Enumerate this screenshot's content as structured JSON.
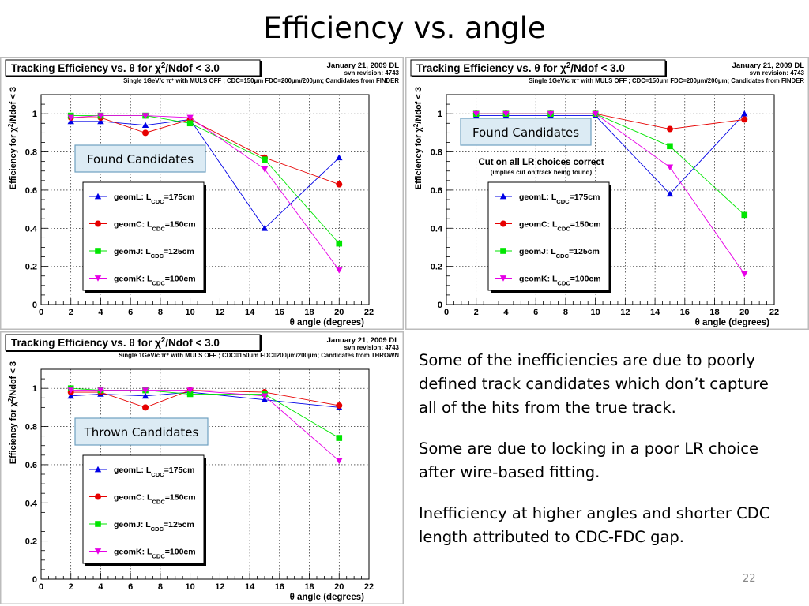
{
  "slide": {
    "title": "Efficiency vs. angle",
    "page_number": "22",
    "paragraphs": [
      "Some of the inefficiencies are due to poorly defined track candidates which don’t capture all of the hits from the true track.",
      "Some are due to locking in a poor LR choice after wire-based fitting.",
      "Inefficiency at higher angles and shorter CDC length attributed to CDC-FDC gap."
    ]
  },
  "colors": {
    "geomL": "#0000e6",
    "geomC": "#e60000",
    "geomJ": "#00e600",
    "geomK": "#e600e6",
    "frame": "#bcbcbc",
    "annotation_fill": "#dcebf4",
    "annotation_border": "#6fa0c0"
  },
  "chart_data": [
    {
      "type": "line",
      "title": "Tracking Efficiency vs. θ for χ²/Ndof < 3.0",
      "title_prefix": "Tracking Efficiency vs. θ for χ",
      "title_sup": "2",
      "title_suffix": "/Ndof < 3.0",
      "date": "January 21, 2009 DL",
      "revision": "svn revision: 4743",
      "subtitle": "Single 1GeV/c π⁺ with MULS OFF ; CDC=150μm FDC=200μm/200μm;  Candidates from FINDER",
      "xlabel": "θ angle (degrees)",
      "ylabel_prefix": "Efficiency for χ",
      "ylabel_sup": "2",
      "ylabel_suffix": "/Ndof < 3",
      "xlim": [
        0,
        22
      ],
      "ylim": [
        0,
        1.1
      ],
      "xticks": [
        "0",
        "2",
        "4",
        "6",
        "8",
        "10",
        "12",
        "14",
        "16",
        "18",
        "20",
        "22"
      ],
      "yticks": [
        "0",
        "0.2",
        "0.4",
        "0.6",
        "0.8",
        "1"
      ],
      "grid": true,
      "annotation": "Found Candidates",
      "note": "",
      "note_sub": "",
      "legend": [
        {
          "name": "geomL",
          "prefix": "geomL: L",
          "sub": "CDC",
          "suffix": "=175cm",
          "marker": "triangle-up",
          "color_key": "geomL"
        },
        {
          "name": "geomC",
          "prefix": "geomC: L",
          "sub": "CDC",
          "suffix": "=150cm",
          "marker": "circle",
          "color_key": "geomC"
        },
        {
          "name": "geomJ",
          "prefix": "geomJ: L",
          "sub": "CDC",
          "suffix": "=125cm",
          "marker": "square",
          "color_key": "geomJ"
        },
        {
          "name": "geomK",
          "prefix": "geomK: L",
          "sub": "CDC",
          "suffix": "=100cm",
          "marker": "triangle-down",
          "color_key": "geomK"
        }
      ],
      "x": [
        2,
        4,
        7,
        10,
        15,
        20
      ],
      "series": [
        {
          "name": "geomL",
          "values": [
            0.96,
            0.96,
            0.94,
            0.97,
            0.4,
            0.77
          ]
        },
        {
          "name": "geomC",
          "values": [
            0.98,
            0.98,
            0.9,
            0.97,
            0.77,
            0.63
          ]
        },
        {
          "name": "geomJ",
          "values": [
            0.99,
            0.99,
            0.99,
            0.95,
            0.76,
            0.32
          ]
        },
        {
          "name": "geomK",
          "values": [
            0.98,
            0.99,
            0.99,
            0.98,
            0.71,
            0.18
          ]
        }
      ]
    },
    {
      "type": "line",
      "title": "Tracking Efficiency vs. θ for χ²/Ndof < 3.0",
      "title_prefix": "Tracking Efficiency vs. θ for χ",
      "title_sup": "2",
      "title_suffix": "/Ndof < 3.0",
      "date": "January 21, 2009 DL",
      "revision": "svn revision: 4743",
      "subtitle": "Single 1GeV/c π⁺ with MULS OFF ; CDC=150μm FDC=200μm/200μm;  Candidates from FINDER",
      "xlabel": "θ angle (degrees)",
      "ylabel_prefix": "Efficiency for χ",
      "ylabel_sup": "2",
      "ylabel_suffix": "/Ndof < 3",
      "xlim": [
        0,
        22
      ],
      "ylim": [
        0,
        1.1
      ],
      "xticks": [
        "0",
        "2",
        "4",
        "6",
        "8",
        "10",
        "12",
        "14",
        "16",
        "18",
        "20",
        "22"
      ],
      "yticks": [
        "0",
        "0.2",
        "0.4",
        "0.6",
        "0.8",
        "1"
      ],
      "grid": true,
      "annotation": "Found Candidates",
      "note": "Cut on all LR choices correct",
      "note_sub": "(implies cut on track being found)",
      "legend": [
        {
          "name": "geomL",
          "prefix": "geomL: L",
          "sub": "CDC",
          "suffix": "=175cm",
          "marker": "triangle-up",
          "color_key": "geomL"
        },
        {
          "name": "geomC",
          "prefix": "geomC: L",
          "sub": "CDC",
          "suffix": "=150cm",
          "marker": "circle",
          "color_key": "geomC"
        },
        {
          "name": "geomJ",
          "prefix": "geomJ: L",
          "sub": "CDC",
          "suffix": "=125cm",
          "marker": "square",
          "color_key": "geomJ"
        },
        {
          "name": "geomK",
          "prefix": "geomK: L",
          "sub": "CDC",
          "suffix": "=100cm",
          "marker": "triangle-down",
          "color_key": "geomK"
        }
      ],
      "x": [
        2,
        4,
        7,
        10,
        15,
        20
      ],
      "series": [
        {
          "name": "geomL",
          "values": [
            0.99,
            0.99,
            0.99,
            0.99,
            0.58,
            1.0
          ]
        },
        {
          "name": "geomC",
          "values": [
            1.0,
            1.0,
            1.0,
            1.0,
            0.92,
            0.97
          ]
        },
        {
          "name": "geomJ",
          "values": [
            1.0,
            1.0,
            1.0,
            1.0,
            0.83,
            0.47
          ]
        },
        {
          "name": "geomK",
          "values": [
            1.0,
            1.0,
            1.0,
            1.0,
            0.72,
            0.16
          ]
        }
      ]
    },
    {
      "type": "line",
      "title": "Tracking Efficiency vs. θ for χ²/Ndof < 3.0",
      "title_prefix": "Tracking Efficiency vs. θ for χ",
      "title_sup": "2",
      "title_suffix": "/Ndof < 3.0",
      "date": "January 21, 2009 DL",
      "revision": "svn revision: 4743",
      "subtitle": "Single 1GeV/c π⁺ with MULS OFF ; CDC=150μm FDC=200μm/200μm;  Candidates from THROWN",
      "xlabel": "θ angle (degrees)",
      "ylabel_prefix": "Efficiency for χ",
      "ylabel_sup": "2",
      "ylabel_suffix": "/Ndof < 3",
      "xlim": [
        0,
        22
      ],
      "ylim": [
        0,
        1.1
      ],
      "xticks": [
        "0",
        "2",
        "4",
        "6",
        "8",
        "10",
        "12",
        "14",
        "16",
        "18",
        "20",
        "22"
      ],
      "yticks": [
        "0",
        "0.2",
        "0.4",
        "0.6",
        "0.8",
        "1"
      ],
      "grid": true,
      "annotation": "Thrown Candidates",
      "note": "",
      "note_sub": "",
      "legend": [
        {
          "name": "geomL",
          "prefix": "geomL: L",
          "sub": "CDC",
          "suffix": "=175cm",
          "marker": "triangle-up",
          "color_key": "geomL"
        },
        {
          "name": "geomC",
          "prefix": "geomC: L",
          "sub": "CDC",
          "suffix": "=150cm",
          "marker": "circle",
          "color_key": "geomC"
        },
        {
          "name": "geomJ",
          "prefix": "geomJ: L",
          "sub": "CDC",
          "suffix": "=125cm",
          "marker": "square",
          "color_key": "geomJ"
        },
        {
          "name": "geomK",
          "prefix": "geomK: L",
          "sub": "CDC",
          "suffix": "=100cm",
          "marker": "triangle-down",
          "color_key": "geomK"
        }
      ],
      "x": [
        2,
        4,
        7,
        10,
        15,
        20
      ],
      "series": [
        {
          "name": "geomL",
          "values": [
            0.96,
            0.97,
            0.96,
            0.98,
            0.94,
            0.9
          ]
        },
        {
          "name": "geomC",
          "values": [
            0.98,
            0.98,
            0.9,
            0.99,
            0.98,
            0.91
          ]
        },
        {
          "name": "geomJ",
          "values": [
            1.0,
            0.99,
            0.99,
            0.97,
            0.97,
            0.74
          ]
        },
        {
          "name": "geomK",
          "values": [
            0.99,
            0.99,
            0.99,
            0.99,
            0.96,
            0.62
          ]
        }
      ]
    }
  ]
}
